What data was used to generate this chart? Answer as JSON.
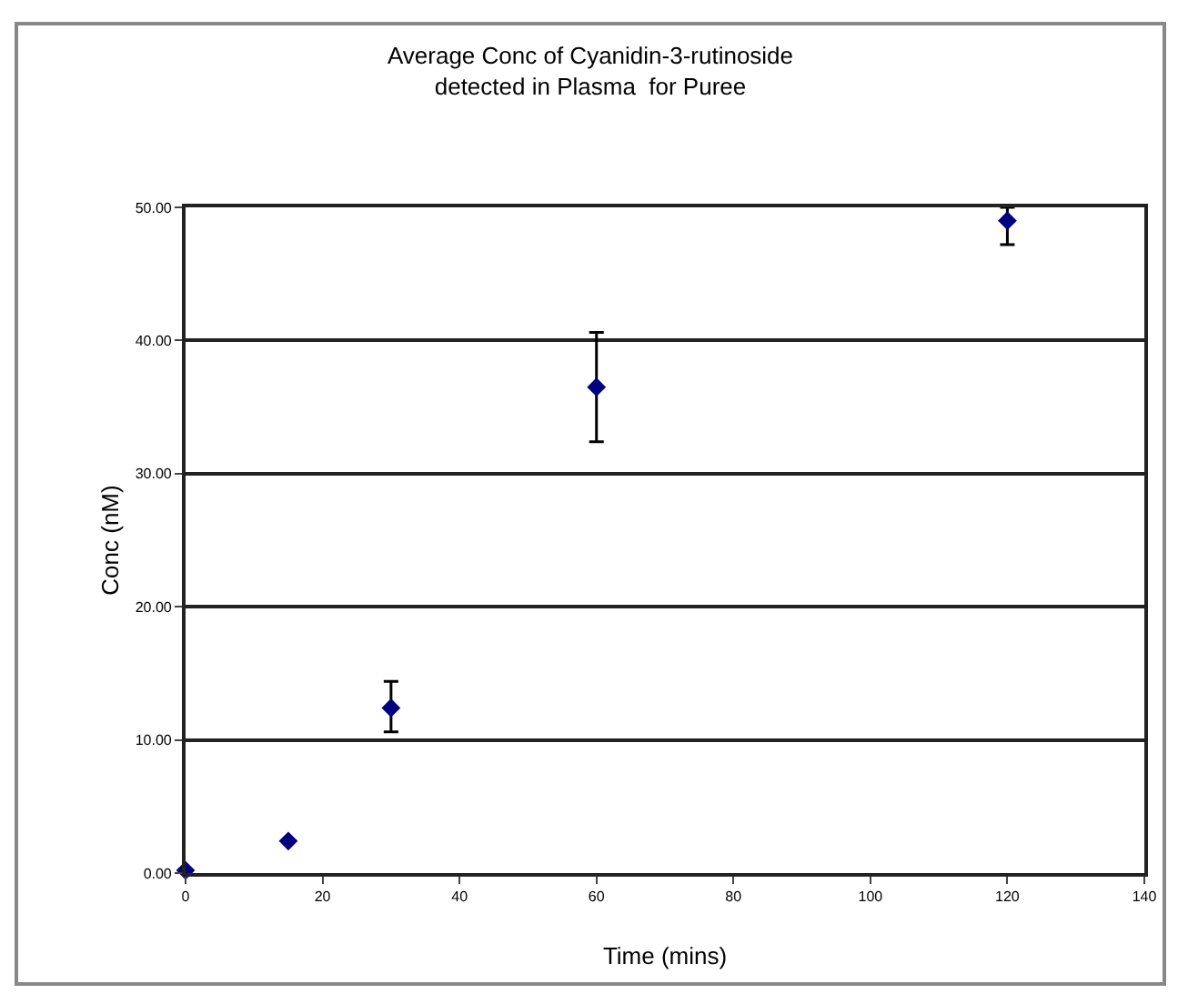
{
  "chart_data": {
    "type": "scatter",
    "title": "Average Conc of Cyanidin-3-rutinoside\ndetected in Plasma  for Puree",
    "xlabel": "Time (mins)",
    "ylabel": "Conc (nM)",
    "x": [
      0,
      15,
      30,
      60,
      120
    ],
    "series": [
      {
        "color": "#000080",
        "values": [
          0.2,
          2.4,
          12.4,
          36.5,
          49.0
        ],
        "errors": [
          null,
          null,
          [
            10.6,
            14.4
          ],
          [
            32.4,
            40.6
          ],
          [
            47.2,
            50
          ]
        ]
      }
    ],
    "xlim": [
      0,
      140
    ],
    "xticks": [
      0,
      20,
      40,
      60,
      80,
      100,
      120,
      140
    ],
    "ylim": [
      0,
      50
    ],
    "yticks": [
      {
        "value": 0,
        "label": "0.00"
      },
      {
        "value": 10,
        "label": "10.00"
      },
      {
        "value": 20,
        "label": "20.00"
      },
      {
        "value": 30,
        "label": "30.00"
      },
      {
        "value": 40,
        "label": "40.00"
      },
      {
        "value": 50,
        "label": "50.00"
      }
    ],
    "grid": "y",
    "marker": "diamond"
  }
}
